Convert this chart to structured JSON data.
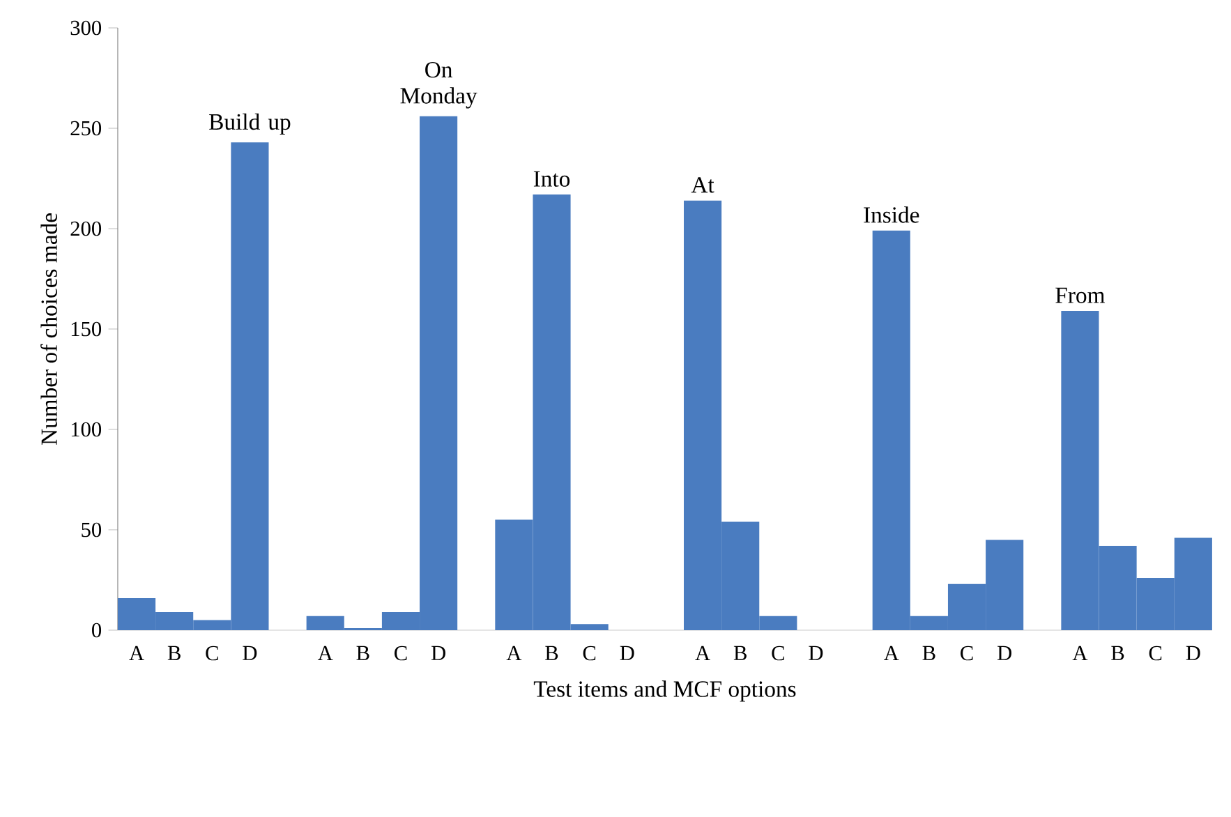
{
  "chart_data": {
    "type": "bar",
    "xlabel": "Test items and MCF options",
    "ylabel": "Number of choices made",
    "categories": [
      "A",
      "B",
      "C",
      "D",
      null,
      "A",
      "B",
      "C",
      "D",
      null,
      "A",
      "B",
      "C",
      "D",
      null,
      "A",
      "B",
      "C",
      "D",
      null,
      "A",
      "B",
      "C",
      "D",
      null,
      "A",
      "B",
      "C",
      "D"
    ],
    "values": [
      16,
      9,
      5,
      243,
      null,
      7,
      1,
      9,
      256,
      null,
      55,
      217,
      3,
      0,
      null,
      214,
      54,
      7,
      0,
      null,
      199,
      7,
      23,
      45,
      null,
      159,
      42,
      26,
      46
    ],
    "color": "#4a7cc0",
    "ylim": [
      0,
      300
    ],
    "yticks": [
      0,
      50,
      100,
      150,
      200,
      250,
      300
    ],
    "annotations": [
      "Build up",
      "On Monday",
      "Into",
      "At",
      "Inside",
      "From"
    ]
  }
}
